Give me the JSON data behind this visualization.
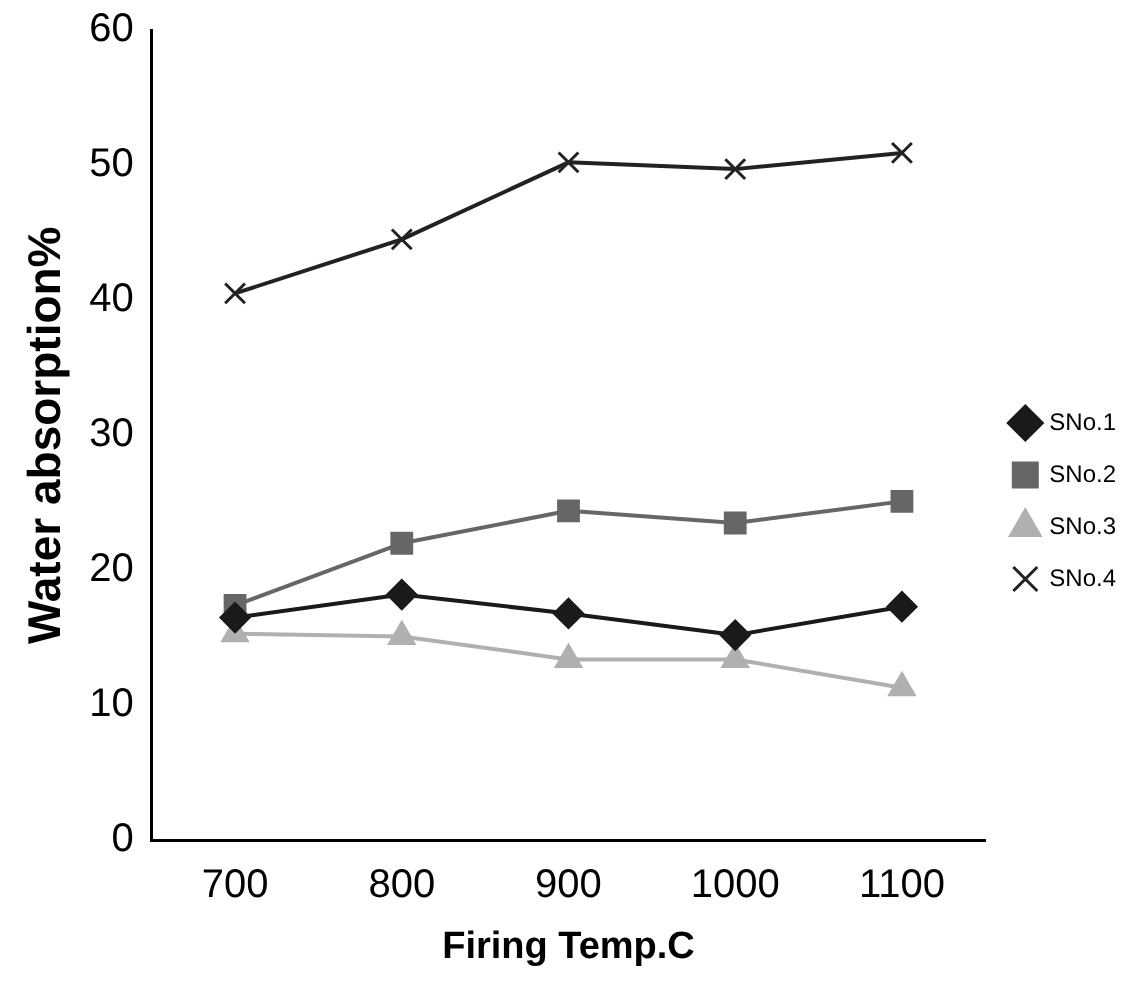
{
  "chart_data": {
    "type": "line",
    "xlabel": "Firing Temp.C",
    "ylabel": "Water absorption%",
    "categories": [
      "700",
      "800",
      "900",
      "1000",
      "1100"
    ],
    "series": [
      {
        "name": "SNo.1",
        "color": "#1a1a1a",
        "marker": "diamond",
        "values": [
          16.5,
          18.2,
          16.8,
          15.2,
          17.3
        ]
      },
      {
        "name": "SNo.2",
        "color": "#666666",
        "marker": "square",
        "values": [
          17.4,
          22,
          24.4,
          23.5,
          25.1
        ]
      },
      {
        "name": "SNo.3",
        "color": "#b0b0b0",
        "marker": "triangle",
        "values": [
          15.3,
          15.1,
          13.4,
          13.4,
          11.3
        ]
      },
      {
        "name": "SNo.4",
        "color": "#222222",
        "marker": "cross",
        "values": [
          40.5,
          44.5,
          50.2,
          49.7,
          50.9
        ]
      }
    ],
    "ylim": [
      0,
      60
    ],
    "yticks": [
      0,
      10,
      20,
      30,
      40,
      50,
      60
    ],
    "grid": false,
    "legend": "right"
  }
}
